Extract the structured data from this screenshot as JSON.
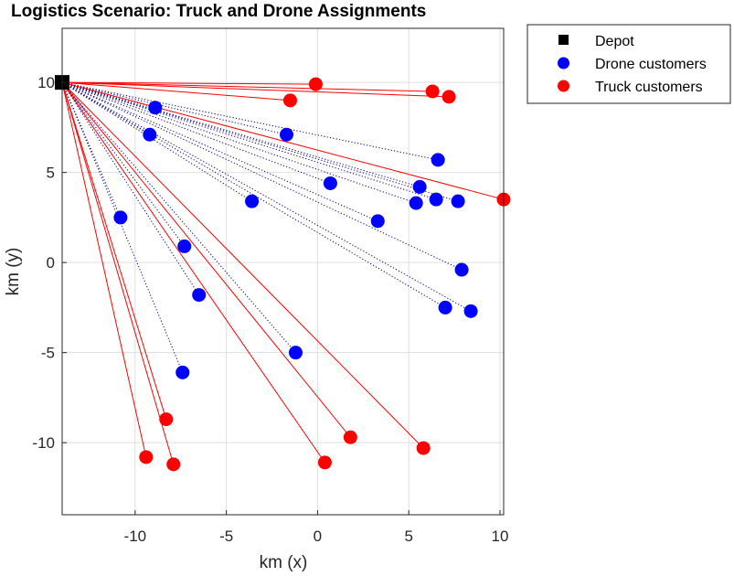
{
  "chart_data": {
    "type": "scatter",
    "title": "Logistics Scenario: Truck and Drone Assignments",
    "xlabel": "km (x)",
    "ylabel": "km (y)",
    "xlim": [
      -14,
      10.2
    ],
    "ylim": [
      -14,
      13
    ],
    "xticks": [
      -10,
      -5,
      0,
      5,
      10
    ],
    "yticks": [
      -10,
      -5,
      0,
      5,
      10
    ],
    "xtick_labels": [
      "-10",
      "-5",
      "0",
      "5",
      "10"
    ],
    "ytick_labels": [
      "-10",
      "-5",
      "0",
      "5",
      "10"
    ],
    "grid": true,
    "legend_location": "outside top-right",
    "legend": [
      "Depot",
      "Drone customers",
      "Truck customers"
    ],
    "colors": {
      "depot": "#000000",
      "drone": "#0000ff",
      "truck": "#ff0000",
      "drone_route": "#00008b",
      "truck_route": "#ff0000",
      "grid": "#dfdfdf",
      "axis": "#262626"
    },
    "depot": {
      "x": -14,
      "y": 10
    },
    "drone_customers": [
      {
        "x": -8.9,
        "y": 8.6
      },
      {
        "x": -9.2,
        "y": 7.1
      },
      {
        "x": -1.7,
        "y": 7.1
      },
      {
        "x": 6.6,
        "y": 5.7
      },
      {
        "x": 0.7,
        "y": 4.4
      },
      {
        "x": 5.6,
        "y": 4.2
      },
      {
        "x": 6.5,
        "y": 3.5
      },
      {
        "x": 7.7,
        "y": 3.4
      },
      {
        "x": 5.4,
        "y": 3.3
      },
      {
        "x": -3.6,
        "y": 3.4
      },
      {
        "x": 3.3,
        "y": 2.3
      },
      {
        "x": -10.8,
        "y": 2.5
      },
      {
        "x": -7.3,
        "y": 0.9
      },
      {
        "x": 7.9,
        "y": -0.4
      },
      {
        "x": -6.5,
        "y": -1.8
      },
      {
        "x": 7.0,
        "y": -2.5
      },
      {
        "x": 8.4,
        "y": -2.7
      },
      {
        "x": -1.2,
        "y": -5.0
      },
      {
        "x": -7.4,
        "y": -6.1
      }
    ],
    "truck_customers": [
      {
        "x": -0.1,
        "y": 9.9
      },
      {
        "x": -1.5,
        "y": 9.0
      },
      {
        "x": 6.3,
        "y": 9.5
      },
      {
        "x": 7.2,
        "y": 9.2
      },
      {
        "x": 10.2,
        "y": 3.5
      },
      {
        "x": -8.3,
        "y": -8.7
      },
      {
        "x": -9.4,
        "y": -10.8
      },
      {
        "x": -7.9,
        "y": -11.2
      },
      {
        "x": 0.4,
        "y": -11.1
      },
      {
        "x": 1.8,
        "y": -9.7
      },
      {
        "x": 5.8,
        "y": -10.3
      }
    ]
  }
}
